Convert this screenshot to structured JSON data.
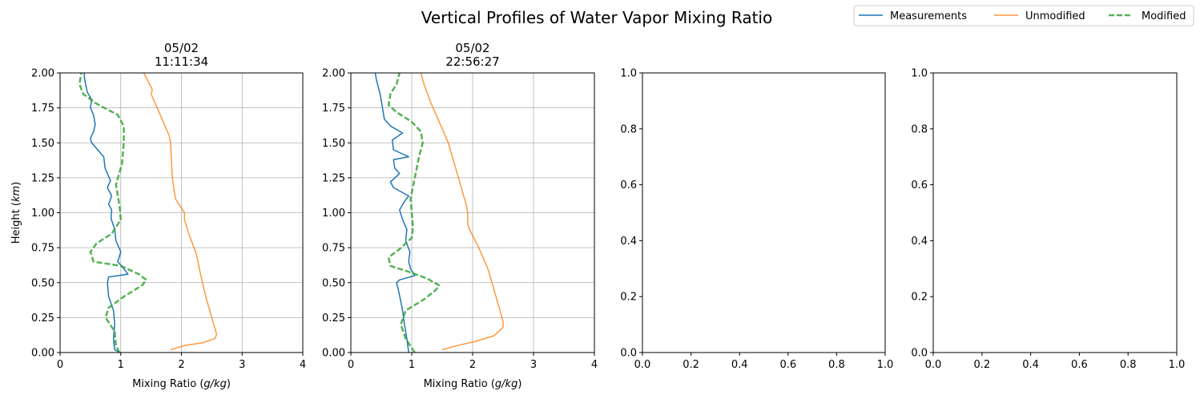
{
  "suptitle": "Vertical Profiles of Water Vapor Mixing Ratio",
  "legend": {
    "placement": "top-right",
    "entries": [
      {
        "label": "Measurements",
        "color": "#1f77b4",
        "style": "solid"
      },
      {
        "label": "Unmodified",
        "color": "#ff7f0e",
        "style": "solid"
      },
      {
        "label": "Modified",
        "color": "#2ca02c",
        "style": "dashed"
      }
    ]
  },
  "chart_data": [
    {
      "type": "line",
      "title_line1": "05/02",
      "title_line2": "11:11:34",
      "xlabel_text": "Mixing Ratio (",
      "xlabel_unit": "g/kg",
      "xlabel_close": ")",
      "ylabel_text": "Height (",
      "ylabel_unit": "km",
      "ylabel_close": ")",
      "xlim": [
        0,
        4
      ],
      "ylim": [
        0,
        2
      ],
      "xticks": [
        0,
        1,
        2,
        3,
        4
      ],
      "xtick_labels": [
        "0",
        "1",
        "2",
        "3",
        "4"
      ],
      "yticks": [
        0,
        0.25,
        0.5,
        0.75,
        1.0,
        1.25,
        1.5,
        1.75,
        2.0
      ],
      "ytick_labels": [
        "0.00",
        "0.25",
        "0.50",
        "0.75",
        "1.00",
        "1.25",
        "1.50",
        "1.75",
        "2.00"
      ],
      "grid": true,
      "series": [
        {
          "name": "Measurements",
          "color": "#1f77b4",
          "style": "solid",
          "points": [
            [
              0.98,
              0.0
            ],
            [
              0.9,
              0.02
            ],
            [
              0.88,
              0.1
            ],
            [
              0.9,
              0.2
            ],
            [
              0.88,
              0.3
            ],
            [
              0.8,
              0.4
            ],
            [
              0.78,
              0.5
            ],
            [
              0.8,
              0.54
            ],
            [
              1.12,
              0.56
            ],
            [
              1.05,
              0.6
            ],
            [
              0.95,
              0.65
            ],
            [
              1.0,
              0.72
            ],
            [
              0.92,
              0.8
            ],
            [
              0.9,
              0.88
            ],
            [
              0.84,
              0.96
            ],
            [
              0.85,
              1.02
            ],
            [
              0.8,
              1.06
            ],
            [
              0.85,
              1.12
            ],
            [
              0.78,
              1.18
            ],
            [
              0.83,
              1.23
            ],
            [
              0.74,
              1.32
            ],
            [
              0.72,
              1.4
            ],
            [
              0.62,
              1.45
            ],
            [
              0.52,
              1.5
            ],
            [
              0.5,
              1.53
            ],
            [
              0.55,
              1.58
            ],
            [
              0.58,
              1.63
            ],
            [
              0.55,
              1.7
            ],
            [
              0.5,
              1.75
            ],
            [
              0.52,
              1.81
            ],
            [
              0.45,
              1.86
            ],
            [
              0.42,
              1.92
            ],
            [
              0.4,
              1.97
            ],
            [
              0.4,
              2.0
            ]
          ]
        },
        {
          "name": "Unmodified",
          "color": "#ff7f0e",
          "style": "solid",
          "points": [
            [
              1.82,
              0.02
            ],
            [
              2.05,
              0.05
            ],
            [
              2.35,
              0.07
            ],
            [
              2.55,
              0.1
            ],
            [
              2.58,
              0.13
            ],
            [
              2.5,
              0.25
            ],
            [
              2.4,
              0.4
            ],
            [
              2.32,
              0.55
            ],
            [
              2.25,
              0.7
            ],
            [
              2.12,
              0.85
            ],
            [
              2.05,
              0.95
            ],
            [
              2.05,
              1.0
            ],
            [
              1.9,
              1.1
            ],
            [
              1.85,
              1.25
            ],
            [
              1.82,
              1.5
            ],
            [
              1.8,
              1.55
            ],
            [
              1.65,
              1.7
            ],
            [
              1.5,
              1.85
            ],
            [
              1.52,
              1.88
            ],
            [
              1.38,
              2.0
            ]
          ]
        },
        {
          "name": "Modified",
          "color": "#2ca02c",
          "style": "dashed",
          "points": [
            [
              0.98,
              0.0
            ],
            [
              0.92,
              0.05
            ],
            [
              0.9,
              0.15
            ],
            [
              0.75,
              0.25
            ],
            [
              0.8,
              0.32
            ],
            [
              1.05,
              0.4
            ],
            [
              1.35,
              0.48
            ],
            [
              1.42,
              0.52
            ],
            [
              1.3,
              0.56
            ],
            [
              1.0,
              0.62
            ],
            [
              0.55,
              0.65
            ],
            [
              0.5,
              0.72
            ],
            [
              0.6,
              0.78
            ],
            [
              0.85,
              0.85
            ],
            [
              1.0,
              0.95
            ],
            [
              0.98,
              1.05
            ],
            [
              0.92,
              1.2
            ],
            [
              1.02,
              1.35
            ],
            [
              1.05,
              1.5
            ],
            [
              1.05,
              1.62
            ],
            [
              0.95,
              1.7
            ],
            [
              0.6,
              1.78
            ],
            [
              0.38,
              1.85
            ],
            [
              0.32,
              1.92
            ],
            [
              0.35,
              2.0
            ]
          ]
        }
      ]
    },
    {
      "type": "line",
      "title_line1": "05/02",
      "title_line2": "22:56:27",
      "xlabel_text": "Mixing Ratio (",
      "xlabel_unit": "g/kg",
      "xlabel_close": ")",
      "xlim": [
        0,
        4
      ],
      "ylim": [
        0,
        2
      ],
      "xticks": [
        0,
        1,
        2,
        3,
        4
      ],
      "xtick_labels": [
        "0",
        "1",
        "2",
        "3",
        "4"
      ],
      "yticks": [
        0,
        0.25,
        0.5,
        0.75,
        1.0,
        1.25,
        1.5,
        1.75,
        2.0
      ],
      "ytick_labels": [
        "0.00",
        "0.25",
        "0.50",
        "0.75",
        "1.00",
        "1.25",
        "1.50",
        "1.75",
        "2.00"
      ],
      "grid": true,
      "series": [
        {
          "name": "Measurements",
          "color": "#1f77b4",
          "style": "solid",
          "points": [
            [
              0.95,
              0.0
            ],
            [
              0.92,
              0.1
            ],
            [
              0.88,
              0.2
            ],
            [
              0.85,
              0.3
            ],
            [
              0.78,
              0.45
            ],
            [
              0.75,
              0.5
            ],
            [
              0.8,
              0.52
            ],
            [
              1.05,
              0.55
            ],
            [
              0.98,
              0.6
            ],
            [
              0.95,
              0.65
            ],
            [
              0.97,
              0.72
            ],
            [
              0.9,
              0.8
            ],
            [
              0.92,
              0.88
            ],
            [
              0.85,
              0.95
            ],
            [
              0.8,
              1.02
            ],
            [
              0.88,
              1.08
            ],
            [
              0.95,
              1.12
            ],
            [
              0.7,
              1.18
            ],
            [
              0.65,
              1.22
            ],
            [
              0.8,
              1.28
            ],
            [
              0.72,
              1.32
            ],
            [
              0.7,
              1.38
            ],
            [
              0.95,
              1.4
            ],
            [
              0.7,
              1.45
            ],
            [
              0.68,
              1.52
            ],
            [
              0.85,
              1.57
            ],
            [
              0.65,
              1.62
            ],
            [
              0.55,
              1.67
            ],
            [
              0.52,
              1.75
            ],
            [
              0.48,
              1.85
            ],
            [
              0.42,
              1.95
            ],
            [
              0.4,
              2.0
            ]
          ]
        },
        {
          "name": "Unmodified",
          "color": "#ff7f0e",
          "style": "solid",
          "points": [
            [
              1.5,
              0.02
            ],
            [
              1.75,
              0.05
            ],
            [
              2.05,
              0.08
            ],
            [
              2.35,
              0.12
            ],
            [
              2.5,
              0.18
            ],
            [
              2.5,
              0.22
            ],
            [
              2.45,
              0.3
            ],
            [
              2.35,
              0.45
            ],
            [
              2.25,
              0.6
            ],
            [
              2.1,
              0.75
            ],
            [
              1.95,
              0.88
            ],
            [
              1.92,
              0.92
            ],
            [
              1.92,
              1.0
            ],
            [
              1.9,
              1.05
            ],
            [
              1.8,
              1.2
            ],
            [
              1.7,
              1.35
            ],
            [
              1.6,
              1.5
            ],
            [
              1.45,
              1.65
            ],
            [
              1.3,
              1.8
            ],
            [
              1.2,
              1.92
            ],
            [
              1.15,
              2.0
            ]
          ]
        },
        {
          "name": "Modified",
          "color": "#2ca02c",
          "style": "dashed",
          "points": [
            [
              1.05,
              0.0
            ],
            [
              0.9,
              0.1
            ],
            [
              0.82,
              0.2
            ],
            [
              0.9,
              0.3
            ],
            [
              1.2,
              0.38
            ],
            [
              1.4,
              0.45
            ],
            [
              1.45,
              0.48
            ],
            [
              1.25,
              0.53
            ],
            [
              1.0,
              0.57
            ],
            [
              0.65,
              0.62
            ],
            [
              0.62,
              0.68
            ],
            [
              0.8,
              0.74
            ],
            [
              1.0,
              0.82
            ],
            [
              1.02,
              0.9
            ],
            [
              1.0,
              1.0
            ],
            [
              0.98,
              1.1
            ],
            [
              1.05,
              1.25
            ],
            [
              1.12,
              1.4
            ],
            [
              1.18,
              1.5
            ],
            [
              1.15,
              1.58
            ],
            [
              1.0,
              1.65
            ],
            [
              0.75,
              1.72
            ],
            [
              0.62,
              1.77
            ],
            [
              0.65,
              1.85
            ],
            [
              0.75,
              1.92
            ],
            [
              0.8,
              2.0
            ]
          ]
        }
      ]
    },
    {
      "type": "line",
      "xlim": [
        0,
        1
      ],
      "ylim": [
        0,
        1
      ],
      "xticks": [
        0,
        0.2,
        0.4,
        0.6,
        0.8,
        1.0
      ],
      "xtick_labels": [
        "0.0",
        "0.2",
        "0.4",
        "0.6",
        "0.8",
        "1.0"
      ],
      "yticks": [
        0,
        0.2,
        0.4,
        0.6,
        0.8,
        1.0
      ],
      "ytick_labels": [
        "0.0",
        "0.2",
        "0.4",
        "0.6",
        "0.8",
        "1.0"
      ],
      "grid": false,
      "series": []
    },
    {
      "type": "line",
      "xlim": [
        0,
        1
      ],
      "ylim": [
        0,
        1
      ],
      "xticks": [
        0,
        0.2,
        0.4,
        0.6,
        0.8,
        1.0
      ],
      "xtick_labels": [
        "0.0",
        "0.2",
        "0.4",
        "0.6",
        "0.8",
        "1.0"
      ],
      "yticks": [
        0,
        0.2,
        0.4,
        0.6,
        0.8,
        1.0
      ],
      "ytick_labels": [
        "0.0",
        "0.2",
        "0.4",
        "0.6",
        "0.8",
        "1.0"
      ],
      "grid": false,
      "series": []
    }
  ]
}
